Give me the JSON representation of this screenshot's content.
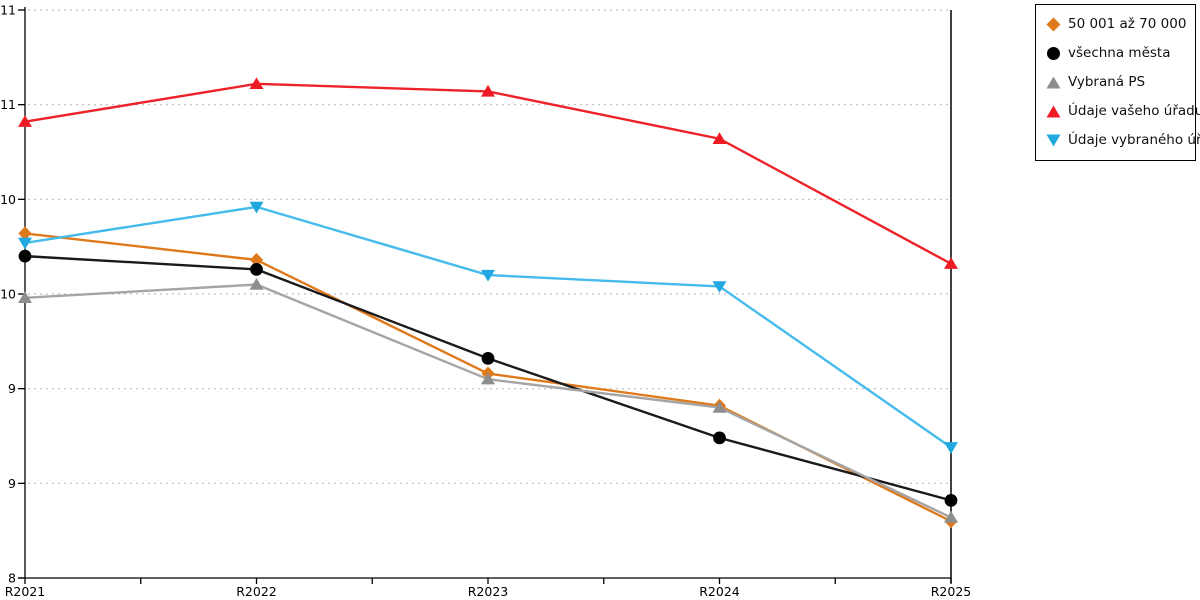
{
  "chart_data": {
    "type": "line",
    "title": "",
    "xlabel": "",
    "ylabel": "",
    "categories": [
      "R2021",
      "R2022",
      "R2023",
      "R2024",
      "R2025"
    ],
    "ylim": [
      8,
      11
    ],
    "y_ticks": [
      {
        "value": 11,
        "label": "11"
      },
      {
        "value": 10.5,
        "label": "11"
      },
      {
        "value": 10,
        "label": "10"
      },
      {
        "value": 9.5,
        "label": "10"
      },
      {
        "value": 9,
        "label": "9"
      },
      {
        "value": 8.5,
        "label": "9"
      },
      {
        "value": 8,
        "label": "8"
      }
    ],
    "grid": "horizontal-dotted",
    "legend_position": "outside-top-right",
    "series": [
      {
        "name": "50 001 až 70 000",
        "marker": "diamond",
        "color": "#DF7A1C",
        "line_color": "#DF7A1C",
        "values": [
          9.82,
          9.68,
          9.08,
          8.91,
          8.3
        ]
      },
      {
        "name": "všechna města",
        "marker": "circle",
        "color": "#000000",
        "line_color": "#1a1a1a",
        "values": [
          9.7,
          9.63,
          9.16,
          8.74,
          8.41
        ]
      },
      {
        "name": "Vybraná PS",
        "marker": "triangle-up",
        "color": "#8E8E8E",
        "line_color": "#A5A5A5",
        "values": [
          9.48,
          9.55,
          9.05,
          8.9,
          8.32
        ]
      },
      {
        "name": "Údaje vašeho úřadu",
        "marker": "triangle-up",
        "color": "#ED1C24",
        "line_color": "#EE2229",
        "values": [
          10.41,
          10.61,
          10.57,
          10.32,
          9.66
        ]
      },
      {
        "name": "Údaje vybraného úřadu",
        "marker": "triangle-down",
        "color": "#21A8E0",
        "line_color": "#45BBEC",
        "values": [
          9.77,
          9.96,
          9.6,
          9.54,
          8.69
        ]
      }
    ]
  },
  "style": {
    "grid_color": "#BDBDBD",
    "axis_color": "#000000",
    "tick_label_color": "#000000"
  }
}
